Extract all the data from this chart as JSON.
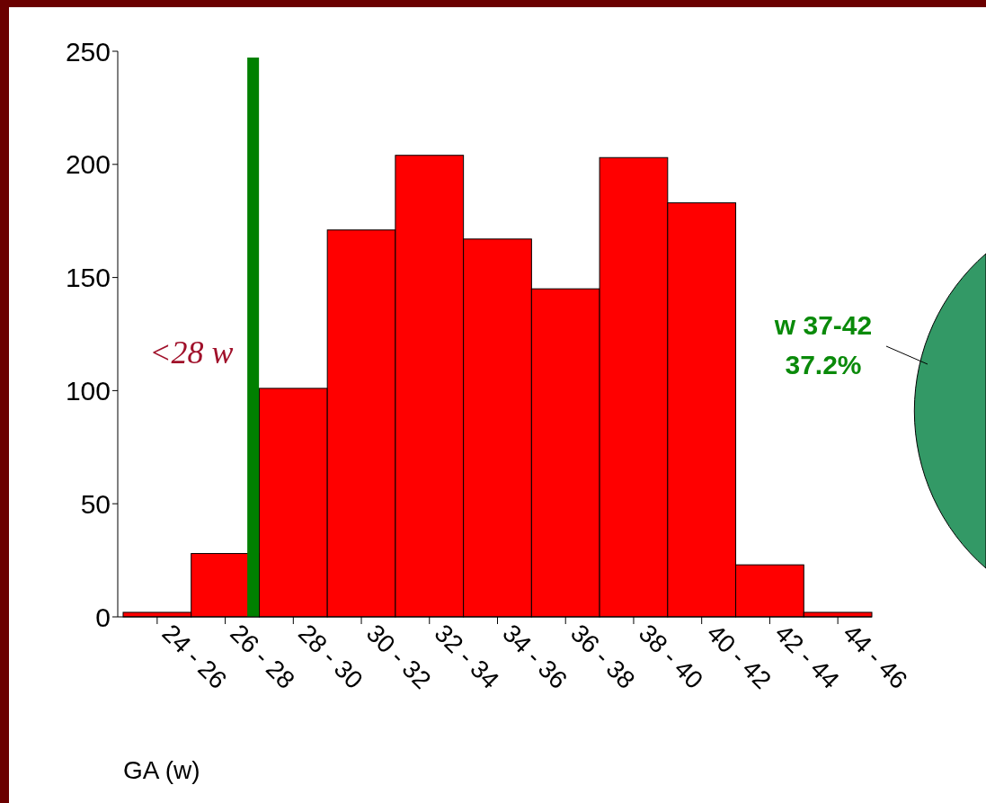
{
  "chart_data": {
    "type": "bar",
    "xlabel": "GA (w)",
    "categories": [
      "24 - 26",
      "26 - 28",
      "28 - 30",
      "30 - 32",
      "32 - 34",
      "34 - 36",
      "36 - 38",
      "38 - 40",
      "40 - 42",
      "42 - 44",
      "44 - 46"
    ],
    "values": [
      2,
      28,
      101,
      171,
      204,
      167,
      145,
      203,
      183,
      23,
      2
    ],
    "color": "#ff0000",
    "ylim": [
      0,
      250
    ],
    "yticks": [
      0,
      50,
      100,
      150,
      200,
      250
    ],
    "ref_lines": [
      {
        "axis": "x",
        "value": "26 - 28",
        "label": "<28 w",
        "color": "#008000"
      }
    ],
    "annotations": [
      "w 37-42\n37.2%"
    ],
    "grid": false
  }
}
